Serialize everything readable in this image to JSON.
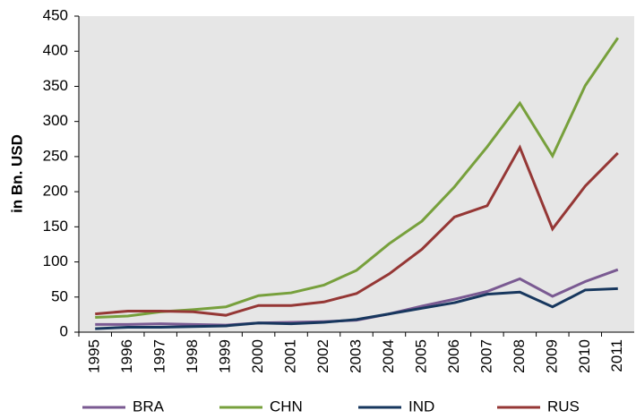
{
  "chart_data": {
    "type": "line",
    "ylabel": "in Bn. USD",
    "categories": [
      "1995",
      "1996",
      "1997",
      "1998",
      "1999",
      "2000",
      "2001",
      "2002",
      "2003",
      "2004",
      "2005",
      "2006",
      "2007",
      "2008",
      "2009",
      "2010",
      "2011"
    ],
    "series": [
      {
        "name": "BRA",
        "color": "#7a5a92",
        "values": [
          11,
          11,
          12,
          11,
          10,
          13,
          14,
          15,
          17,
          26,
          37,
          47,
          58,
          76,
          51,
          72,
          89
        ]
      },
      {
        "name": "CHN",
        "color": "#77a03c",
        "values": [
          21,
          23,
          29,
          32,
          36,
          52,
          56,
          67,
          88,
          126,
          158,
          207,
          264,
          326,
          251,
          351,
          419
        ]
      },
      {
        "name": "IND",
        "color": "#17375e",
        "values": [
          5,
          7,
          7,
          8,
          9,
          13,
          12,
          14,
          18,
          26,
          34,
          42,
          54,
          57,
          36,
          60,
          62
        ]
      },
      {
        "name": "RUS",
        "color": "#953735",
        "values": [
          26,
          30,
          30,
          29,
          24,
          38,
          38,
          43,
          55,
          83,
          118,
          164,
          180,
          263,
          147,
          208,
          255
        ]
      }
    ],
    "ylim": [
      0,
      450
    ],
    "yticks": [
      0,
      50,
      100,
      150,
      200,
      250,
      300,
      350,
      400,
      450
    ],
    "legend": "bottom"
  }
}
